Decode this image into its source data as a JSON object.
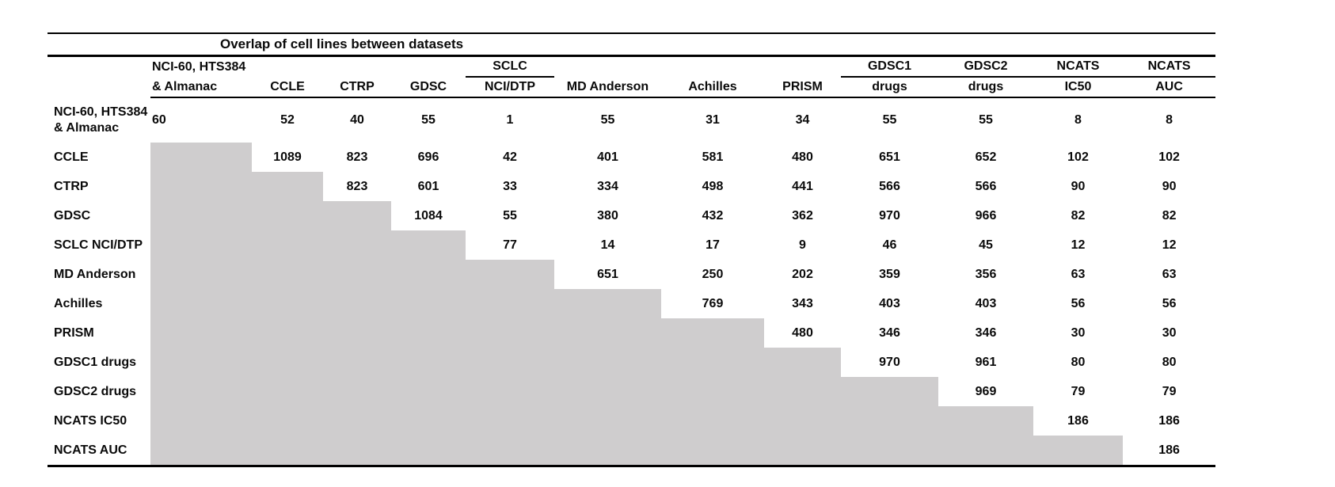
{
  "title": "Overlap of cell lines between datasets",
  "colors": {
    "shaded_cell": "#cfcdce",
    "rule": "#000000",
    "background": "#ffffff",
    "text": "#0a0a0a"
  },
  "table": {
    "columns": [
      {
        "line1": "NCI-60, HTS384",
        "line2": "& Almanac",
        "align": "left",
        "group_underline": false
      },
      {
        "line1": "",
        "line2": "CCLE",
        "align": "center",
        "group_underline": false
      },
      {
        "line1": "",
        "line2": "CTRP",
        "align": "center",
        "group_underline": false
      },
      {
        "line1": "",
        "line2": "GDSC",
        "align": "center",
        "group_underline": false
      },
      {
        "line1": "SCLC",
        "line2": "NCI/DTP",
        "align": "center",
        "group_underline": true
      },
      {
        "line1": "",
        "line2": "MD Anderson",
        "align": "center",
        "group_underline": false
      },
      {
        "line1": "",
        "line2": "Achilles",
        "align": "center",
        "group_underline": false
      },
      {
        "line1": "",
        "line2": "PRISM",
        "align": "center",
        "group_underline": false
      },
      {
        "line1": "GDSC1",
        "line2": "drugs",
        "align": "center",
        "group_underline": true
      },
      {
        "line1": "GDSC2",
        "line2": "drugs",
        "align": "center",
        "group_underline": true
      },
      {
        "line1": "NCATS",
        "line2": "IC50",
        "align": "center",
        "group_underline": true
      },
      {
        "line1": "NCATS",
        "line2": "AUC",
        "align": "center",
        "group_underline": true
      }
    ],
    "row_labels": [
      {
        "lines": [
          "NCI-60, HTS384",
          "& Almanac"
        ]
      },
      {
        "lines": [
          "CCLE"
        ]
      },
      {
        "lines": [
          "CTRP"
        ]
      },
      {
        "lines": [
          "GDSC"
        ]
      },
      {
        "lines": [
          "SCLC NCI/DTP"
        ]
      },
      {
        "lines": [
          "MD Anderson"
        ]
      },
      {
        "lines": [
          "Achilles"
        ]
      },
      {
        "lines": [
          "PRISM"
        ]
      },
      {
        "lines": [
          "GDSC1 drugs"
        ]
      },
      {
        "lines": [
          "GDSC2 drugs"
        ]
      },
      {
        "lines": [
          "NCATS IC50"
        ]
      },
      {
        "lines": [
          "NCATS AUC"
        ]
      }
    ],
    "matrix": [
      [
        60,
        52,
        40,
        55,
        1,
        55,
        31,
        34,
        55,
        55,
        8,
        8
      ],
      [
        null,
        1089,
        823,
        696,
        42,
        401,
        581,
        480,
        651,
        652,
        102,
        102
      ],
      [
        null,
        null,
        823,
        601,
        33,
        334,
        498,
        441,
        566,
        566,
        90,
        90
      ],
      [
        null,
        null,
        null,
        1084,
        55,
        380,
        432,
        362,
        970,
        966,
        82,
        82
      ],
      [
        null,
        null,
        null,
        null,
        77,
        14,
        17,
        9,
        46,
        45,
        12,
        12
      ],
      [
        null,
        null,
        null,
        null,
        null,
        651,
        250,
        202,
        359,
        356,
        63,
        63
      ],
      [
        null,
        null,
        null,
        null,
        null,
        null,
        769,
        343,
        403,
        403,
        56,
        56
      ],
      [
        null,
        null,
        null,
        null,
        null,
        null,
        null,
        480,
        346,
        346,
        30,
        30
      ],
      [
        null,
        null,
        null,
        null,
        null,
        null,
        null,
        null,
        970,
        961,
        80,
        80
      ],
      [
        null,
        null,
        null,
        null,
        null,
        null,
        null,
        null,
        null,
        969,
        79,
        79
      ],
      [
        null,
        null,
        null,
        null,
        null,
        null,
        null,
        null,
        null,
        null,
        186,
        186
      ],
      [
        null,
        null,
        null,
        null,
        null,
        null,
        null,
        null,
        null,
        null,
        null,
        186
      ]
    ]
  }
}
